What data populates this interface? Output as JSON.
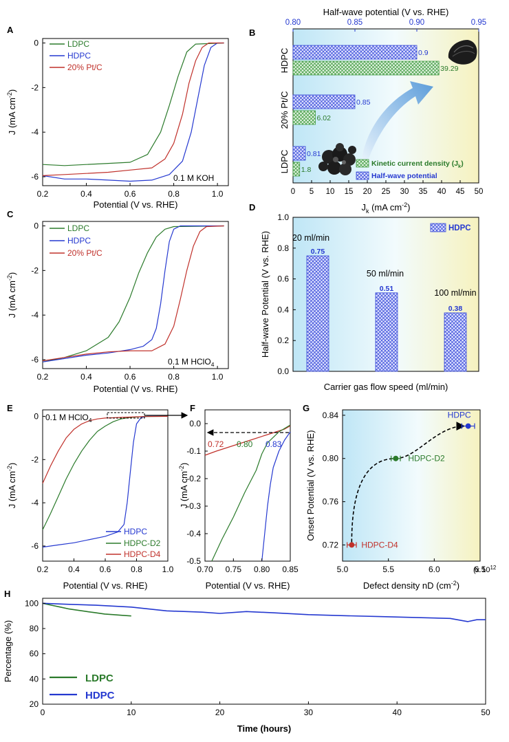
{
  "colors": {
    "green": "#2a7a2a",
    "blue": "#2438d0",
    "red": "#c0302a",
    "axis": "#000000",
    "kinetic_fill": "#3f9a3f",
    "halfwave_fill": "#3a4bd8",
    "dash": "#000000"
  },
  "chart_data": [
    {
      "panel": "A",
      "type": "line",
      "xlabel": "Potential (V vs. RHE)",
      "ylabel": "J (mA cm-2)",
      "ylabel_base": "J (mA cm",
      "ylabel_sup": "-2",
      "ylabel_close": ")",
      "xlim": [
        0.2,
        1.05
      ],
      "ylim": [
        -6.4,
        0.2
      ],
      "xticks": [
        "0.2",
        "0.4",
        "0.6",
        "0.8",
        "1.0"
      ],
      "yticks": [
        "0",
        "-2",
        "-4",
        "-6"
      ],
      "annotation": "0.1 M KOH",
      "legend": [
        "LDPC",
        "HDPC",
        "20% Pt/C"
      ],
      "series": [
        {
          "name": "LDPC",
          "color": "green",
          "points": [
            [
              0.2,
              -5.45
            ],
            [
              0.3,
              -5.5
            ],
            [
              0.4,
              -5.45
            ],
            [
              0.5,
              -5.4
            ],
            [
              0.6,
              -5.35
            ],
            [
              0.68,
              -5.0
            ],
            [
              0.74,
              -4.0
            ],
            [
              0.78,
              -2.8
            ],
            [
              0.82,
              -1.5
            ],
            [
              0.86,
              -0.4
            ],
            [
              0.9,
              -0.05
            ],
            [
              1.03,
              0.0
            ]
          ]
        },
        {
          "name": "HDPC",
          "color": "blue",
          "points": [
            [
              0.2,
              -5.95
            ],
            [
              0.3,
              -6.1
            ],
            [
              0.4,
              -6.1
            ],
            [
              0.5,
              -6.15
            ],
            [
              0.6,
              -6.2
            ],
            [
              0.7,
              -6.15
            ],
            [
              0.78,
              -5.9
            ],
            [
              0.84,
              -5.3
            ],
            [
              0.88,
              -4.0
            ],
            [
              0.91,
              -2.5
            ],
            [
              0.94,
              -1.0
            ],
            [
              0.97,
              -0.2
            ],
            [
              1.0,
              0.0
            ],
            [
              1.03,
              0.0
            ]
          ]
        },
        {
          "name": "20% Pt/C",
          "color": "red",
          "points": [
            [
              0.2,
              -5.95
            ],
            [
              0.3,
              -5.9
            ],
            [
              0.4,
              -5.85
            ],
            [
              0.5,
              -5.8
            ],
            [
              0.6,
              -5.7
            ],
            [
              0.7,
              -5.6
            ],
            [
              0.76,
              -5.2
            ],
            [
              0.8,
              -4.5
            ],
            [
              0.84,
              -3.2
            ],
            [
              0.87,
              -1.8
            ],
            [
              0.9,
              -0.8
            ],
            [
              0.93,
              -0.2
            ],
            [
              0.96,
              0.0
            ],
            [
              1.03,
              0.0
            ]
          ]
        }
      ]
    },
    {
      "panel": "B",
      "type": "bar",
      "top_axis_label": "Half-wave potential (V vs. RHE)",
      "top_ticks": [
        "0.80",
        "0.85",
        "0.90",
        "0.95"
      ],
      "top_lim": [
        0.8,
        0.95
      ],
      "xlabel": "Jk (mA cm-2)",
      "xlabel_main": "J",
      "xlabel_sub": "k",
      "xlabel_rest": " (mA cm",
      "xlabel_sup": "-2",
      "xlabel_close": ")",
      "xlim": [
        0,
        50
      ],
      "xticks": [
        "0",
        "5",
        "10",
        "15",
        "20",
        "25",
        "30",
        "35",
        "40",
        "45",
        "50"
      ],
      "categories": [
        "HDPC",
        "20% Pt/C",
        "LDPC"
      ],
      "series": [
        {
          "name": "Half-wave potential",
          "values": [
            0.9,
            0.85,
            0.81
          ],
          "labels": [
            "0.9",
            "0.85",
            "0.81"
          ]
        },
        {
          "name": "Kinetic current density (Jk)",
          "values": [
            39.29,
            6.02,
            1.8
          ],
          "labels": [
            "39.29",
            "6.02",
            "1.8"
          ]
        }
      ],
      "legend": [
        "Kinetic current density (Jk)",
        "Half-wave potential"
      ],
      "legend_k_main": "Kinetic current density (J",
      "legend_k_sub": "k",
      "legend_k_close": ")"
    },
    {
      "panel": "C",
      "type": "line",
      "xlabel": "Potential (V vs. RHE)",
      "ylabel": "J (mA cm-2)",
      "ylabel_base": "J (mA cm",
      "ylabel_sup": "-2",
      "ylabel_close": ")",
      "xlim": [
        0.2,
        1.05
      ],
      "ylim": [
        -6.4,
        0.2
      ],
      "xticks": [
        "0.2",
        "0.4",
        "0.6",
        "0.8",
        "1.0"
      ],
      "yticks": [
        "0",
        "-2",
        "-4",
        "-6"
      ],
      "annotation": "0.1 M HClO4",
      "annotation_main": "0.1 M HClO",
      "annotation_sub": "4",
      "legend": [
        "LDPC",
        "HDPC",
        "20% Pt/C"
      ],
      "series": [
        {
          "name": "LDPC",
          "color": "green",
          "points": [
            [
              0.2,
              -6.1
            ],
            [
              0.3,
              -5.9
            ],
            [
              0.4,
              -5.6
            ],
            [
              0.5,
              -5.0
            ],
            [
              0.55,
              -4.3
            ],
            [
              0.6,
              -3.2
            ],
            [
              0.64,
              -2.1
            ],
            [
              0.68,
              -1.2
            ],
            [
              0.72,
              -0.5
            ],
            [
              0.76,
              -0.15
            ],
            [
              0.8,
              -0.03
            ],
            [
              1.03,
              0.0
            ]
          ]
        },
        {
          "name": "HDPC",
          "color": "blue",
          "points": [
            [
              0.2,
              -6.1
            ],
            [
              0.3,
              -5.95
            ],
            [
              0.4,
              -5.8
            ],
            [
              0.5,
              -5.7
            ],
            [
              0.6,
              -5.55
            ],
            [
              0.66,
              -5.4
            ],
            [
              0.7,
              -5.1
            ],
            [
              0.72,
              -4.6
            ],
            [
              0.74,
              -3.5
            ],
            [
              0.76,
              -2.0
            ],
            [
              0.78,
              -0.7
            ],
            [
              0.8,
              -0.15
            ],
            [
              0.83,
              0.0
            ],
            [
              1.03,
              0.0
            ]
          ]
        },
        {
          "name": "20% Pt/C",
          "color": "red",
          "points": [
            [
              0.2,
              -6.05
            ],
            [
              0.3,
              -5.9
            ],
            [
              0.4,
              -5.75
            ],
            [
              0.5,
              -5.65
            ],
            [
              0.6,
              -5.6
            ],
            [
              0.7,
              -5.6
            ],
            [
              0.76,
              -5.3
            ],
            [
              0.8,
              -4.5
            ],
            [
              0.83,
              -3.3
            ],
            [
              0.86,
              -2.0
            ],
            [
              0.89,
              -0.9
            ],
            [
              0.92,
              -0.25
            ],
            [
              0.95,
              -0.03
            ],
            [
              1.03,
              0.0
            ]
          ]
        }
      ]
    },
    {
      "panel": "D",
      "type": "bar",
      "xlabel": "Carrier gas flow speed (ml/min)",
      "ylabel": "Half-wave Potential (V vs. RHE)",
      "ylim": [
        0,
        1.0
      ],
      "yticks": [
        "0.0",
        "0.2",
        "0.4",
        "0.6",
        "0.8",
        "1.0"
      ],
      "categories": [
        "20 ml/min",
        "50 ml/min",
        "100 ml/min"
      ],
      "values": [
        0.75,
        0.51,
        0.38
      ],
      "labels": [
        "0.75",
        "0.51",
        "0.38"
      ],
      "legend": [
        "HDPC"
      ]
    },
    {
      "panel": "E",
      "type": "line",
      "xlabel": "Potential (V vs. RHE)",
      "ylabel": "J (mA cm-2)",
      "ylabel_base": "J (mA cm",
      "ylabel_sup": "-2",
      "ylabel_close": ")",
      "xlim": [
        0.2,
        1.0
      ],
      "ylim": [
        -6.7,
        0.3
      ],
      "xticks": [
        "0.2",
        "0.4",
        "0.6",
        "0.8",
        "1.0"
      ],
      "yticks": [
        "0",
        "-2",
        "-4",
        "-6"
      ],
      "annotation": "0.1 M HClO4",
      "annotation_main": "0.1 M HClO",
      "annotation_sub": "4",
      "legend": [
        "HDPC",
        "HDPC-D2",
        "HDPC-D4"
      ],
      "series": [
        {
          "name": "HDPC",
          "color": "blue",
          "points": [
            [
              0.2,
              -6.05
            ],
            [
              0.3,
              -5.95
            ],
            [
              0.4,
              -5.85
            ],
            [
              0.5,
              -5.7
            ],
            [
              0.6,
              -5.55
            ],
            [
              0.68,
              -5.35
            ],
            [
              0.72,
              -5.0
            ],
            [
              0.74,
              -4.0
            ],
            [
              0.76,
              -2.6
            ],
            [
              0.78,
              -1.2
            ],
            [
              0.8,
              -0.35
            ],
            [
              0.83,
              -0.05
            ],
            [
              0.87,
              0.0
            ],
            [
              1.0,
              0.0
            ]
          ]
        },
        {
          "name": "HDPC-D2",
          "color": "green",
          "points": [
            [
              0.2,
              -5.25
            ],
            [
              0.25,
              -4.5
            ],
            [
              0.3,
              -3.7
            ],
            [
              0.35,
              -2.9
            ],
            [
              0.4,
              -2.2
            ],
            [
              0.45,
              -1.6
            ],
            [
              0.5,
              -1.1
            ],
            [
              0.55,
              -0.7
            ],
            [
              0.6,
              -0.45
            ],
            [
              0.65,
              -0.25
            ],
            [
              0.7,
              -0.12
            ],
            [
              0.75,
              -0.06
            ],
            [
              0.8,
              -0.03
            ],
            [
              0.85,
              -0.01
            ],
            [
              1.0,
              0.0
            ]
          ]
        },
        {
          "name": "HDPC-D4",
          "color": "red",
          "points": [
            [
              0.2,
              -3.1
            ],
            [
              0.25,
              -2.3
            ],
            [
              0.3,
              -1.6
            ],
            [
              0.35,
              -1.0
            ],
            [
              0.4,
              -0.6
            ],
            [
              0.45,
              -0.35
            ],
            [
              0.5,
              -0.2
            ],
            [
              0.55,
              -0.12
            ],
            [
              0.6,
              -0.08
            ],
            [
              0.7,
              -0.05
            ],
            [
              0.8,
              -0.02
            ],
            [
              0.85,
              -0.01
            ],
            [
              1.0,
              0.0
            ]
          ]
        }
      ]
    },
    {
      "panel": "F",
      "type": "line",
      "xlabel": "Potential (V vs. RHE)",
      "ylabel": "J (mA cm-2)",
      "ylabel_base": "J (mA cm",
      "ylabel_sup": "-2",
      "ylabel_close": ")",
      "xlim": [
        0.7,
        0.85
      ],
      "ylim": [
        -0.5,
        0.05
      ],
      "xticks": [
        "0.70",
        "0.75",
        "0.80",
        "0.85"
      ],
      "yticks": [
        "0.0",
        "-0.1",
        "-0.2",
        "-0.3",
        "-0.4",
        "-0.5"
      ],
      "labels": [
        {
          "text": "0.72",
          "color": "red"
        },
        {
          "text": "0.80",
          "color": "green"
        },
        {
          "text": "0.83",
          "color": "blue"
        }
      ],
      "series": [
        {
          "name": "HDPC-D4",
          "color": "red",
          "points": [
            [
              0.7,
              -0.115
            ],
            [
              0.72,
              -0.1
            ],
            [
              0.75,
              -0.08
            ],
            [
              0.78,
              -0.06
            ],
            [
              0.81,
              -0.04
            ],
            [
              0.84,
              -0.02
            ],
            [
              0.85,
              -0.008
            ]
          ]
        },
        {
          "name": "HDPC-D2",
          "color": "green",
          "points": [
            [
              0.712,
              -0.5
            ],
            [
              0.73,
              -0.42
            ],
            [
              0.75,
              -0.34
            ],
            [
              0.77,
              -0.25
            ],
            [
              0.79,
              -0.17
            ],
            [
              0.8,
              -0.11
            ],
            [
              0.81,
              -0.07
            ],
            [
              0.83,
              -0.03
            ],
            [
              0.85,
              -0.005
            ]
          ]
        },
        {
          "name": "HDPC",
          "color": "blue",
          "points": [
            [
              0.8,
              -0.5
            ],
            [
              0.805,
              -0.4
            ],
            [
              0.81,
              -0.3
            ],
            [
              0.815,
              -0.22
            ],
            [
              0.82,
              -0.16
            ],
            [
              0.83,
              -0.1
            ],
            [
              0.84,
              -0.06
            ],
            [
              0.85,
              -0.03
            ]
          ]
        }
      ]
    },
    {
      "panel": "G",
      "type": "scatter",
      "xlabel": "Defect density nD (cm-2)",
      "xlabel_base": "Defect density nD (cm",
      "xlabel_sup": "-2",
      "xlabel_close": ")",
      "ylabel": "Onset Potential (V vs. RHE)",
      "xlim": [
        5.0,
        6.5
      ],
      "ylim": [
        0.705,
        0.845
      ],
      "xticks": [
        "5.0",
        "5.5",
        "6.0",
        "6.5"
      ],
      "yticks": [
        "0.72",
        "0.76",
        "0.80",
        "0.84"
      ],
      "multiplier": "(x 10",
      "multiplier_sup": "12",
      "points": [
        {
          "name": "HDPC-D4",
          "x": 5.1,
          "y": 0.72,
          "err": 0.05,
          "color": "red"
        },
        {
          "name": "HDPC-D2",
          "x": 5.58,
          "y": 0.8,
          "err": 0.05,
          "color": "green"
        },
        {
          "name": "HDPC",
          "x": 6.37,
          "y": 0.83,
          "err": 0.07,
          "color": "blue"
        }
      ]
    },
    {
      "panel": "H",
      "type": "line",
      "xlabel": "Time (hours)",
      "ylabel": "Percentage (%)",
      "xlim": [
        0,
        50
      ],
      "ylim": [
        20,
        104
      ],
      "xticks": [
        "0",
        "10",
        "20",
        "30",
        "40",
        "50"
      ],
      "yticks": [
        "20",
        "40",
        "60",
        "80",
        "100"
      ],
      "legend": [
        "LDPC",
        "HDPC"
      ],
      "series": [
        {
          "name": "LDPC",
          "color": "green",
          "points": [
            [
              0,
              100
            ],
            [
              1,
              98.5
            ],
            [
              2,
              97
            ],
            [
              3,
              95.5
            ],
            [
              4,
              94.5
            ],
            [
              5,
              93.5
            ],
            [
              6,
              92.5
            ],
            [
              7,
              91.5
            ],
            [
              8,
              91
            ],
            [
              9,
              90.5
            ],
            [
              10,
              90
            ]
          ]
        },
        {
          "name": "HDPC",
          "color": "blue",
          "points": [
            [
              0,
              100
            ],
            [
              3,
              99.2
            ],
            [
              6,
              98.5
            ],
            [
              10,
              97
            ],
            [
              14,
              94
            ],
            [
              18,
              93
            ],
            [
              20,
              92
            ],
            [
              23,
              93.5
            ],
            [
              26,
              92.5
            ],
            [
              30,
              91
            ],
            [
              34,
              90.2
            ],
            [
              38,
              89.5
            ],
            [
              42,
              88.8
            ],
            [
              46,
              88
            ],
            [
              48,
              85.5
            ],
            [
              49,
              87
            ],
            [
              50,
              87
            ]
          ]
        }
      ]
    }
  ]
}
